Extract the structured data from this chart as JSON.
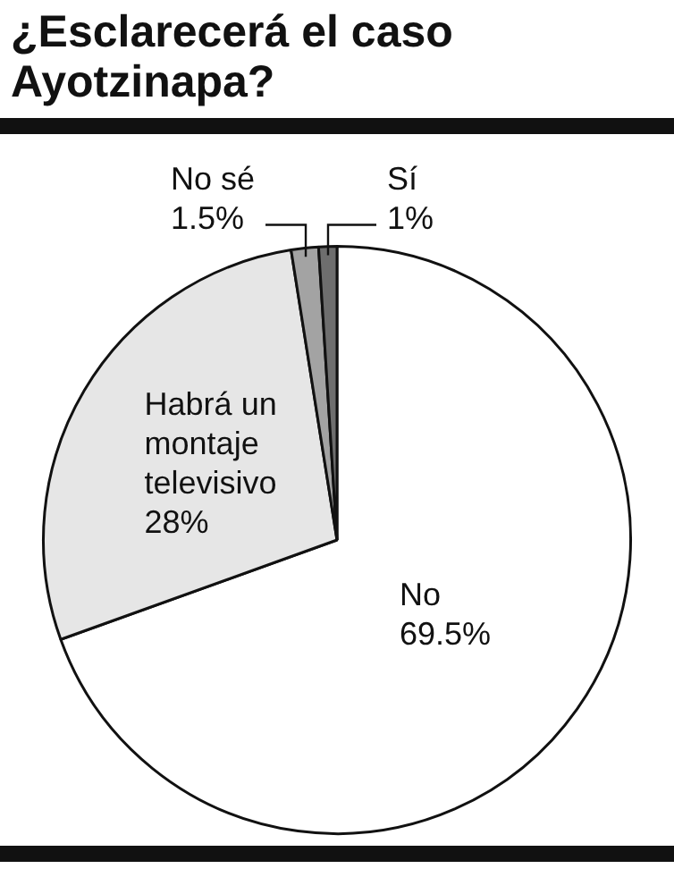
{
  "chart_data": {
    "type": "pie",
    "title": "¿Esclarecerá el caso Ayotzinapa?",
    "categories": [
      "No",
      "Habrá un montaje televisivo",
      "No sé",
      "Sí"
    ],
    "values": [
      69.5,
      28,
      1.5,
      1
    ],
    "colors": [
      "#ffffff",
      "#e6e6e6",
      "#a3a3a3",
      "#6e6e6e"
    ],
    "value_labels": [
      "69.5%",
      "28%",
      "1.5%",
      "1%"
    ]
  }
}
